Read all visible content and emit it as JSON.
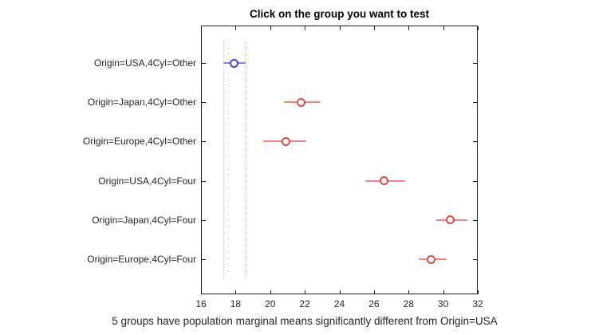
{
  "figure": {
    "title": "Click on the group you want to test",
    "caption": "5 groups have population marginal means significantly different from Origin=USA"
  },
  "chart_data": {
    "type": "scatter",
    "subtype": "horizontal-errorbar-multcompare",
    "title": "Click on the group you want to test",
    "xlabel": "5 groups have population marginal means significantly different from Origin=USA",
    "ylabel": "",
    "xlim": [
      16,
      32
    ],
    "x_ticks": [
      16,
      18,
      20,
      22,
      24,
      26,
      28,
      30,
      32
    ],
    "grid": false,
    "legend": "none",
    "groups": [
      {
        "label": "Origin=USA,4Cyl=Other",
        "mean": 17.9,
        "ci_low": 17.3,
        "ci_high": 18.6,
        "status": "selected"
      },
      {
        "label": "Origin=Japan,4Cyl=Other",
        "mean": 21.8,
        "ci_low": 20.8,
        "ci_high": 22.9,
        "status": "different"
      },
      {
        "label": "Origin=Europe,4Cyl=Other",
        "mean": 20.9,
        "ci_low": 19.6,
        "ci_high": 22.1,
        "status": "different"
      },
      {
        "label": "Origin=USA,4Cyl=Four",
        "mean": 26.6,
        "ci_low": 25.5,
        "ci_high": 27.8,
        "status": "different"
      },
      {
        "label": "Origin=Japan,4Cyl=Four",
        "mean": 30.4,
        "ci_low": 29.6,
        "ci_high": 31.4,
        "status": "different"
      },
      {
        "label": "Origin=Europe,4Cyl=Four",
        "mean": 29.3,
        "ci_low": 28.6,
        "ci_high": 30.2,
        "status": "different"
      }
    ],
    "reference_lines_x": [
      17.3,
      18.6
    ],
    "colors": {
      "selected_marker": "#4646d2",
      "selected_line": "#8282ea",
      "different_marker": "#e04c4c",
      "different_line": "#f48383",
      "reference_line": "#c4c4c4",
      "axis": "#1f1f1f",
      "text": "#262626",
      "title_text": "#000000",
      "background": "#ffffff"
    }
  }
}
